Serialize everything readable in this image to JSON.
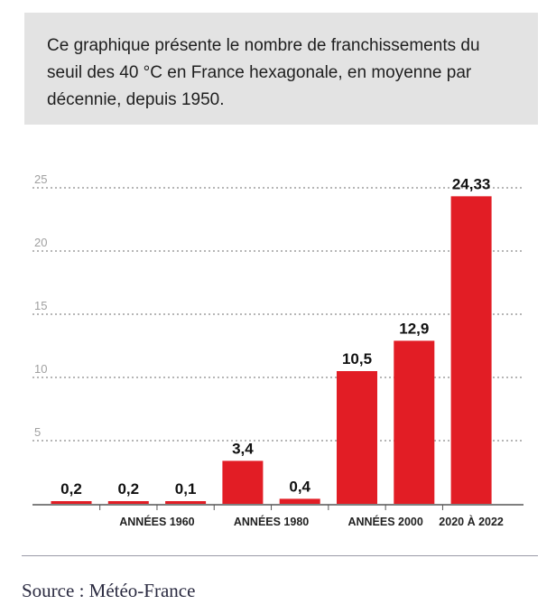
{
  "description": "Ce graphique présente le nombre de franchissements du seuil des 40 °C en France hexagonale, en moyenne par décennie, depuis 1950.",
  "source": "Source : Météo-France",
  "colors": {
    "bar": "#e21d25",
    "grid": "#8a8a8a",
    "axis_text": "#a0a0a0",
    "label_text": "#111111"
  },
  "chart_data": {
    "type": "bar",
    "title": "",
    "xlabel": "",
    "ylabel": "",
    "ylim": [
      0,
      25
    ],
    "yticks": [
      5,
      10,
      15,
      20,
      25
    ],
    "grid": "dashed horizontal",
    "values": [
      0.2,
      0.2,
      0.1,
      3.4,
      0.4,
      10.5,
      12.9,
      24.33
    ],
    "value_labels": [
      "0,2",
      "0,2",
      "0,1",
      "3,4",
      "0,4",
      "10,5",
      "12,9",
      "24,33"
    ],
    "category_labels": [
      {
        "text": "ANNÉES 1960",
        "bar_index": 1.5
      },
      {
        "text": "ANNÉES 1980",
        "bar_index": 3.5
      },
      {
        "text": "ANNÉES 2000",
        "bar_index": 5.5
      },
      {
        "text": "2020 À 2022",
        "bar_index": 7
      }
    ]
  }
}
